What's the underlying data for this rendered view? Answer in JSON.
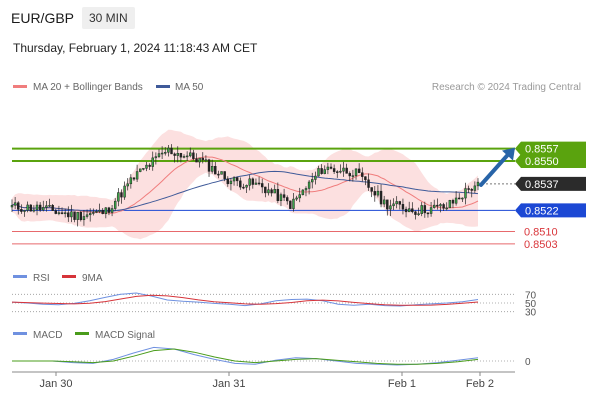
{
  "header": {
    "pair": "EUR/GBP",
    "timeframe": "30 MIN",
    "datetime": "Thursday, February 1, 2024 11:18:43 AM CET"
  },
  "legend": {
    "ma20_bb": "MA 20 + Bollinger Bands",
    "ma50": "MA 50",
    "credit": "Research © 2024 Trading Central",
    "rsi": "RSI",
    "rsi_ma": "9MA",
    "macd": "MACD",
    "macd_signal": "MACD Signal"
  },
  "colors": {
    "bullish_level": "#5aa30e",
    "current_price": "#2b2b2b",
    "support": "#1c48d4",
    "resistance_red": "#e7696c",
    "arrow": "#2864a8",
    "ma20": "#f07d7d",
    "ma50": "#3f5a99",
    "bollinger": "#fbd5d5",
    "rsi": "#6f91e0",
    "rsi_ma": "#d6343a",
    "macd": "#6f91e0",
    "macd_signal": "#4a9c1b"
  },
  "chart_data": [
    {
      "type": "candlestick",
      "instrument": "EUR/GBP",
      "timeframe": "30 MIN",
      "ylim": [
        0.8495,
        0.858
      ],
      "x_ticks": [
        "Jan 30",
        "Jan 31",
        "Feb 1",
        "Feb 2"
      ],
      "levels": [
        {
          "label": "0.8557",
          "value": 0.8557,
          "kind": "target"
        },
        {
          "label": "0.8550",
          "value": 0.855,
          "kind": "target"
        },
        {
          "label": "0.8537",
          "value": 0.8537,
          "kind": "current"
        },
        {
          "label": "0.8522",
          "value": 0.8522,
          "kind": "pivot"
        },
        {
          "label": "0.8510",
          "value": 0.851,
          "kind": "support"
        },
        {
          "label": "0.8503",
          "value": 0.8503,
          "kind": "support"
        }
      ],
      "key_points": [
        {
          "x": "Jan 30 00:00",
          "close": 0.8524
        },
        {
          "x": "Jan 30 08:00",
          "close": 0.8523
        },
        {
          "x": "Jan 30 16:00",
          "close": 0.8519
        },
        {
          "x": "Jan 30 20:00",
          "close": 0.8521
        },
        {
          "x": "Jan 31 00:00",
          "close": 0.8542
        },
        {
          "x": "Jan 31 03:00",
          "close": 0.8556
        },
        {
          "x": "Jan 31 06:00",
          "close": 0.8551
        },
        {
          "x": "Jan 31 12:00",
          "close": 0.8539
        },
        {
          "x": "Jan 31 18:00",
          "close": 0.8536
        },
        {
          "x": "Jan 31 20:00",
          "close": 0.8525
        },
        {
          "x": "Jan 31 22:00",
          "close": 0.8546
        },
        {
          "x": "Feb 1 02:00",
          "close": 0.8544
        },
        {
          "x": "Feb 1 06:00",
          "close": 0.8526
        },
        {
          "x": "Feb 1 12:00",
          "close": 0.8522
        },
        {
          "x": "Feb 1 16:00",
          "close": 0.8524
        },
        {
          "x": "Feb 1 22:00",
          "close": 0.8538
        }
      ],
      "forecast": {
        "from": 0.8537,
        "to": 0.8557
      }
    },
    {
      "type": "line",
      "name": "RSI",
      "yticks": [
        "70",
        "50",
        "30"
      ],
      "values": [
        52,
        50,
        47,
        46,
        49,
        55,
        63,
        70,
        73,
        66,
        57,
        54,
        52,
        49,
        47,
        44,
        48,
        55,
        58,
        59,
        55,
        47,
        45,
        47,
        44,
        43,
        46,
        48,
        50,
        53,
        58
      ]
    },
    {
      "type": "line",
      "name": "MACD",
      "yticks": [
        "0"
      ],
      "values": [
        0.0,
        0.0,
        0.0,
        -2e-05,
        -3e-05,
        2e-05,
        0.0001,
        0.00017,
        0.00015,
        8e-05,
        2e-05,
        -3e-05,
        -4e-05,
        1e-05,
        4e-05,
        3e-05,
        0.0,
        -3e-05,
        -4e-05,
        -5e-05,
        -4e-05,
        -2e-05,
        1e-05,
        4e-05
      ],
      "signal": [
        0.0,
        0.0,
        0.0,
        -1e-05,
        -2e-05,
        0.0,
        6e-05,
        0.00013,
        0.00015,
        0.00011,
        5e-05,
        0.0,
        -2e-05,
        0.0,
        2e-05,
        3e-05,
        1e-05,
        -1e-05,
        -3e-05,
        -4e-05,
        -4e-05,
        -3e-05,
        -1e-05,
        2e-05
      ]
    }
  ]
}
